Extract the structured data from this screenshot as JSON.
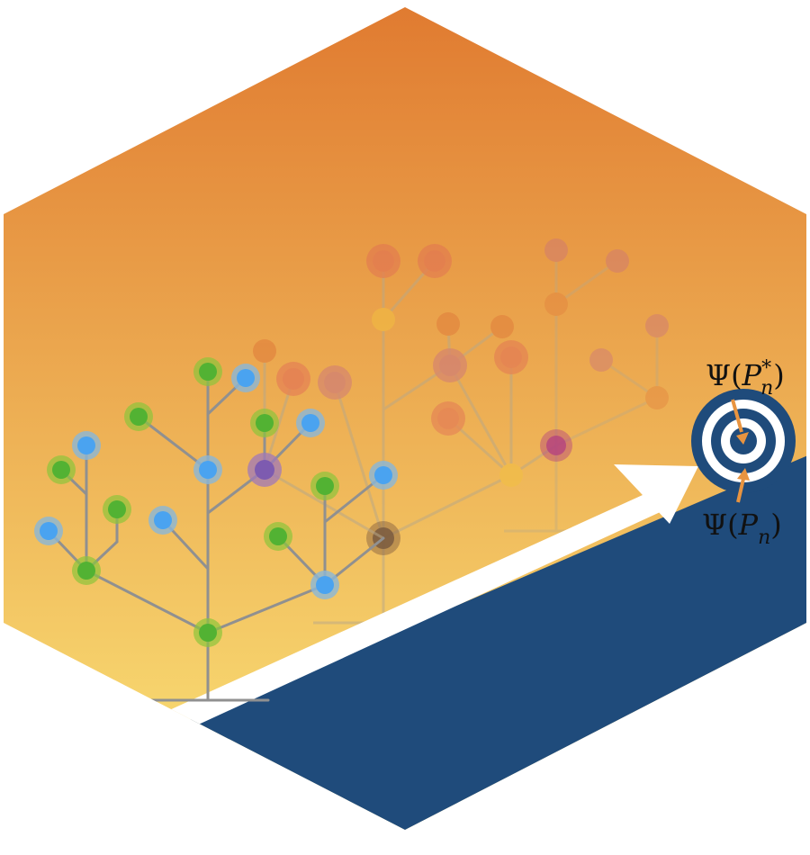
{
  "colors": {
    "gradient_top": "#e07a30",
    "gradient_bottom": "#fbe77a",
    "navy": "#1f4b7b",
    "white": "#ffffff",
    "stem": "#909090",
    "green": "#52b233",
    "blue": "#4aa3f0",
    "purple": "#7d5bb0",
    "red": "#e06656",
    "magenta": "#b4427e",
    "brown": "#8a6442",
    "orange_arrow": "#e89440"
  },
  "labels": {
    "target_optimal": {
      "symbol": "Ψ",
      "variable": "P",
      "subscript": "n",
      "superscript": "*"
    },
    "target_current": {
      "symbol": "Ψ",
      "variable": "P",
      "subscript": "n"
    }
  },
  "icons": {
    "target": "bullseye-target-icon",
    "progress_arrow": "arrow-up-right-icon"
  }
}
